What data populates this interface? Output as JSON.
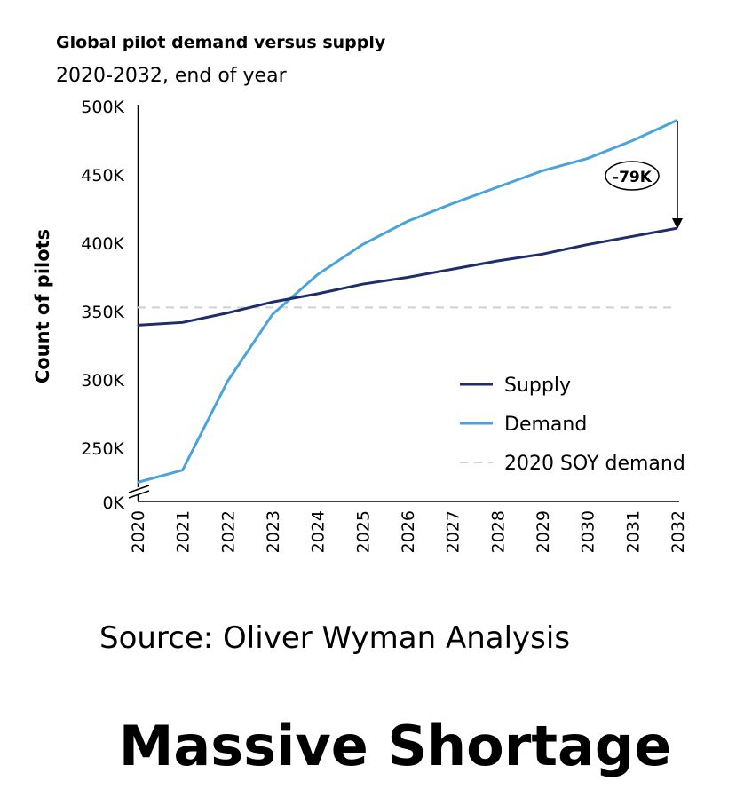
{
  "chart_data": {
    "type": "line",
    "title": "Global pilot demand versus supply",
    "subtitle": "2020-2032, end of year",
    "ylabel": "Count of pilots",
    "xlabel": "",
    "x": [
      "2020",
      "2021",
      "2022",
      "2023",
      "2024",
      "2025",
      "2026",
      "2027",
      "2028",
      "2029",
      "2030",
      "2031",
      "2032"
    ],
    "yticks": [
      {
        "value": 500,
        "label": "500K"
      },
      {
        "value": 450,
        "label": "450K"
      },
      {
        "value": 400,
        "label": "400K"
      },
      {
        "value": 350,
        "label": "350K"
      },
      {
        "value": 300,
        "label": "300K"
      },
      {
        "value": 250,
        "label": "250K"
      }
    ],
    "zero_label": "0K",
    "axis_break": true,
    "ylim": [
      220,
      500
    ],
    "units": "thousands of pilots",
    "series": [
      {
        "name": "Supply",
        "color": "#1f2d6b",
        "style": "solid",
        "values": [
          340,
          342,
          349,
          357,
          363,
          370,
          375,
          381,
          387,
          392,
          399,
          405,
          411
        ]
      },
      {
        "name": "Demand",
        "color": "#4aa3dc",
        "style": "solid",
        "values": [
          225,
          234,
          299,
          348,
          377,
          399,
          416,
          429,
          441,
          453,
          462,
          475,
          490
        ]
      },
      {
        "name": "2020 SOY demand",
        "color": "#d0d0d0",
        "style": "dashed",
        "values": [
          353,
          353,
          353,
          353,
          353,
          353,
          353,
          353,
          353,
          353,
          353,
          353,
          353
        ]
      }
    ],
    "legend_position": "bottom-right",
    "annotation": {
      "label": "-79K",
      "at": "2032"
    },
    "grid": false
  },
  "source": "Source: Oliver Wyman Analysis",
  "headline": "Massive Shortage"
}
